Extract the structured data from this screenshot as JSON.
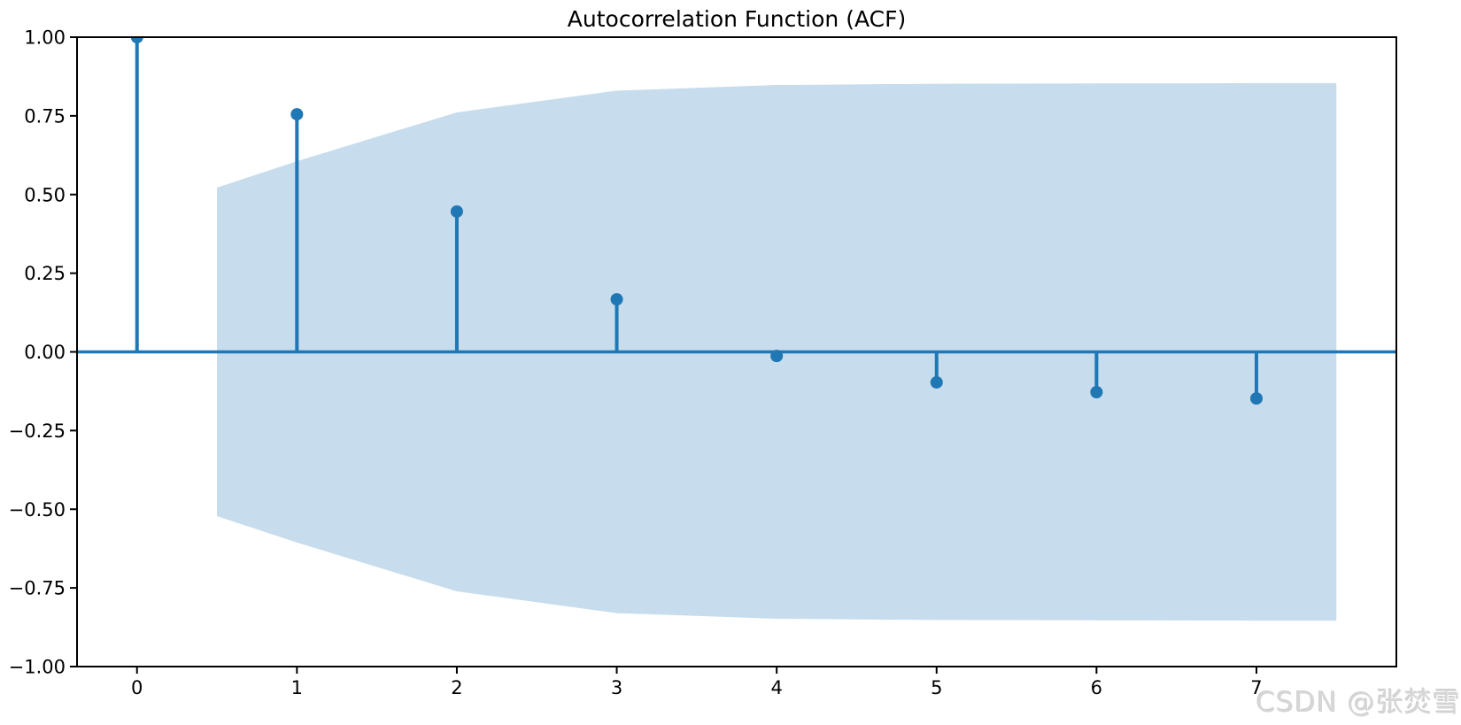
{
  "watermark": {
    "text": "CSDN @张焚雪"
  },
  "chart_data": {
    "type": "stem",
    "title": "Autocorrelation Function (ACF)",
    "xlabel": "",
    "ylabel": "",
    "x": [
      0,
      1,
      2,
      3,
      4,
      5,
      6,
      7
    ],
    "values": [
      1.0,
      0.755,
      0.446,
      0.167,
      -0.013,
      -0.097,
      -0.128,
      -0.148
    ],
    "confidence_band": {
      "x": [
        0.5,
        1,
        2,
        3,
        4,
        5,
        6,
        7,
        7.5
      ],
      "upper": [
        0.522,
        0.606,
        0.761,
        0.83,
        0.848,
        0.852,
        0.853,
        0.854,
        0.854
      ],
      "lower": [
        -0.522,
        -0.606,
        -0.761,
        -0.83,
        -0.848,
        -0.852,
        -0.853,
        -0.854,
        -0.854
      ]
    },
    "xticks": {
      "values": [
        0,
        1,
        2,
        3,
        4,
        5,
        6,
        7
      ],
      "labels": [
        "0",
        "1",
        "2",
        "3",
        "4",
        "5",
        "6",
        "7"
      ]
    },
    "yticks": {
      "values": [
        1.0,
        0.75,
        0.5,
        0.25,
        0.0,
        -0.25,
        -0.5,
        -0.75,
        -1.0
      ],
      "labels": [
        "1.00",
        "0.75",
        "0.50",
        "0.25",
        "0.00",
        "−0.25",
        "−0.50",
        "−0.75",
        "−1.00"
      ]
    },
    "xlim": [
      -0.375,
      7.875
    ],
    "ylim": [
      -1.0,
      1.0
    ],
    "grid": false,
    "legend": null,
    "colors": {
      "stem": "#1f77b4",
      "marker": "#1f77b4",
      "band": "#c7dcec",
      "axis": "#000000",
      "text": "#000000"
    }
  }
}
